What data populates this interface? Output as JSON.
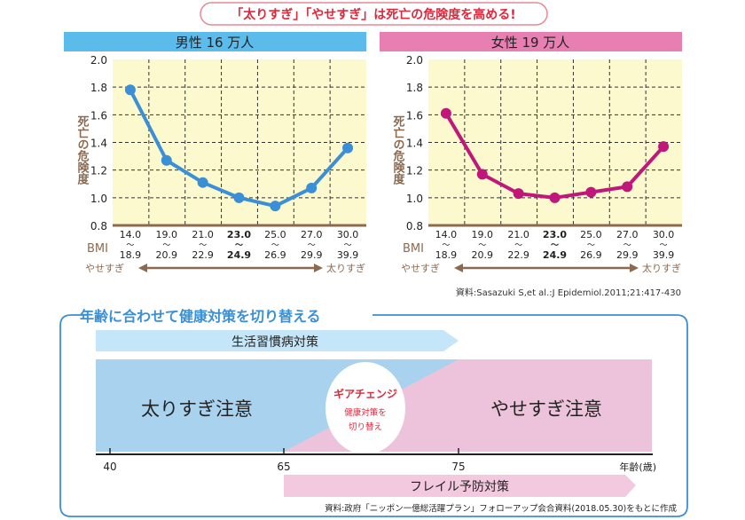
{
  "headline": "「太りすぎ」「やせすぎ」は死亡の危険度を高める!",
  "colors": {
    "male": "#3a8fd6",
    "female": "#c0187a",
    "male_header": "#5bbcec",
    "female_header": "#e87fb3",
    "plot_bg": "#fdf9cf",
    "axis": "#8b6a50",
    "accent_red": "#e0283c",
    "frame_blue": "#3a8fd6",
    "band_blue": "#a9d2ef",
    "band_pink": "#ecc3da",
    "arrow_blue": "#c5e6f8",
    "arrow_pink": "#f2c9df"
  },
  "chart_data": [
    {
      "type": "line",
      "title": "男性 16 万人",
      "ylabel": "死亡の危険度",
      "xlabel": "BMI",
      "ylim": [
        0.8,
        2.0
      ],
      "yticks": [
        "0.8",
        "1.0",
        "1.2",
        "1.4",
        "1.6",
        "1.8",
        "2.0"
      ],
      "categories": [
        {
          "from": "14.0",
          "to": "18.9",
          "bold": false
        },
        {
          "from": "19.0",
          "to": "20.9",
          "bold": false
        },
        {
          "from": "21.0",
          "to": "22.9",
          "bold": false
        },
        {
          "from": "23.0",
          "to": "24.9",
          "bold": true
        },
        {
          "from": "25.0",
          "to": "26.9",
          "bold": false
        },
        {
          "from": "27.0",
          "to": "29.9",
          "bold": false
        },
        {
          "from": "30.0",
          "to": "39.9",
          "bold": false
        }
      ],
      "values": [
        1.78,
        1.27,
        1.11,
        1.0,
        0.94,
        1.07,
        1.36
      ],
      "grid": true,
      "arrow_left": "やせすぎ",
      "arrow_right": "太りすぎ"
    },
    {
      "type": "line",
      "title": "女性 19 万人",
      "ylabel": "死亡の危険度",
      "xlabel": "BMI",
      "ylim": [
        0.8,
        2.0
      ],
      "yticks": [
        "0.8",
        "1.0",
        "1.2",
        "1.4",
        "1.6",
        "1.8",
        "2.0"
      ],
      "categories": [
        {
          "from": "14.0",
          "to": "18.9",
          "bold": false
        },
        {
          "from": "19.0",
          "to": "20.9",
          "bold": false
        },
        {
          "from": "21.0",
          "to": "22.9",
          "bold": false
        },
        {
          "from": "23.0",
          "to": "24.9",
          "bold": true
        },
        {
          "from": "25.0",
          "to": "26.9",
          "bold": false
        },
        {
          "from": "27.0",
          "to": "29.9",
          "bold": false
        },
        {
          "from": "30.0",
          "to": "39.9",
          "bold": false
        }
      ],
      "values": [
        1.61,
        1.17,
        1.03,
        1.0,
        1.04,
        1.08,
        1.37
      ],
      "grid": true,
      "arrow_left": "やせすぎ",
      "arrow_right": "太りすぎ"
    }
  ],
  "source_top": "資料:Sasazuki S,et al.:J Epidemiol.2011;21:417-430",
  "section": {
    "title": "年齢に合わせて健康対策を切り替える",
    "arrow_top": "生活習慣病対策",
    "left_label": "太りすぎ注意",
    "right_label": "やせすぎ注意",
    "circle_title": "ギアチェンジ",
    "circle_line1": "健康対策を",
    "circle_line2": "切り替え",
    "axis_ticks": [
      "40",
      "65",
      "75"
    ],
    "axis_unit": "年齢(歳)",
    "arrow_bottom": "フレイル予防対策",
    "source": "資料:政府「ニッポン一億総活躍プラン」フォローアップ会合資料(2018.05.30)をもとに作成"
  }
}
